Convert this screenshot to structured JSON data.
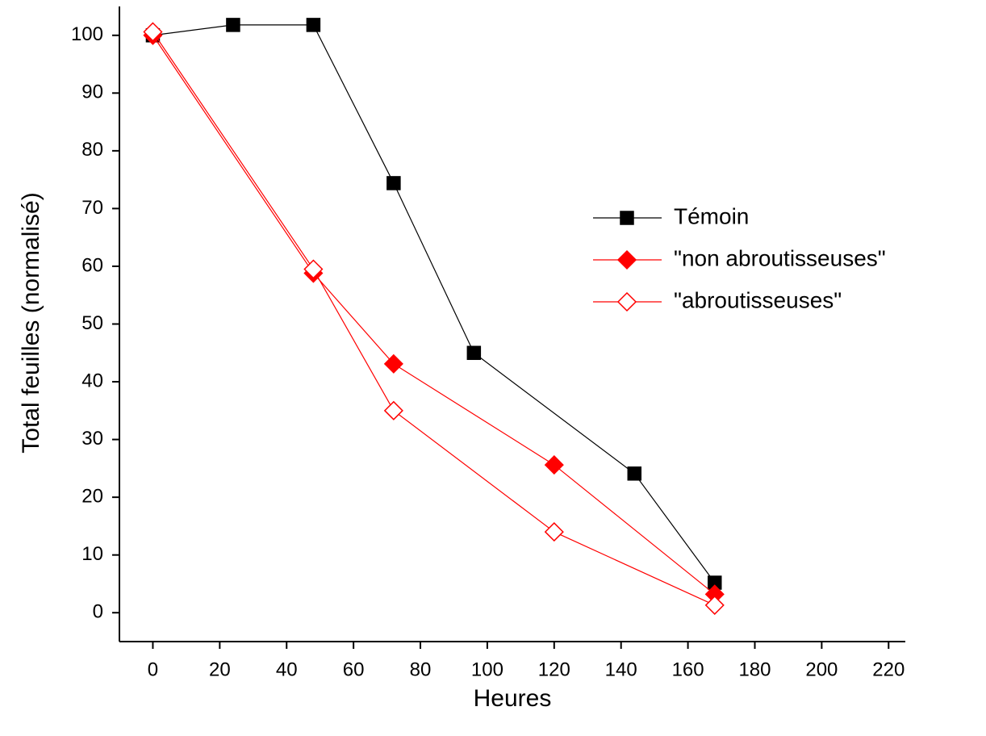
{
  "chart_data": {
    "type": "line",
    "x_label": "Heures",
    "y_label": "Total feuilles (normalisé)",
    "xlim": [
      -10,
      225
    ],
    "xticks": [
      0,
      20,
      40,
      60,
      80,
      100,
      120,
      140,
      160,
      180,
      200,
      220
    ],
    "ylim": [
      -5,
      105
    ],
    "yticks": [
      0,
      10,
      20,
      30,
      40,
      50,
      60,
      70,
      80,
      90,
      100
    ],
    "legend": "right",
    "series": [
      {
        "name": "Témoin",
        "color": "#000000",
        "marker": "square",
        "filled": true,
        "x": [
          0,
          24,
          48,
          72,
          96,
          144,
          168
        ],
        "values": [
          100,
          101.8,
          101.8,
          74.4,
          45,
          24.1,
          5.2
        ]
      },
      {
        "name": "\"non abroutisseuses\"",
        "color": "#ff0000",
        "marker": "diamond",
        "filled": true,
        "x": [
          0,
          48,
          72,
          120,
          168
        ],
        "values": [
          100,
          58.8,
          43.1,
          25.6,
          3.2
        ]
      },
      {
        "name": "\"abroutisseuses\"",
        "color": "#ff0000",
        "marker": "diamond",
        "filled": false,
        "x": [
          0,
          48,
          72,
          120,
          168
        ],
        "values": [
          100.6,
          59.5,
          35,
          14,
          1.3
        ]
      }
    ]
  }
}
